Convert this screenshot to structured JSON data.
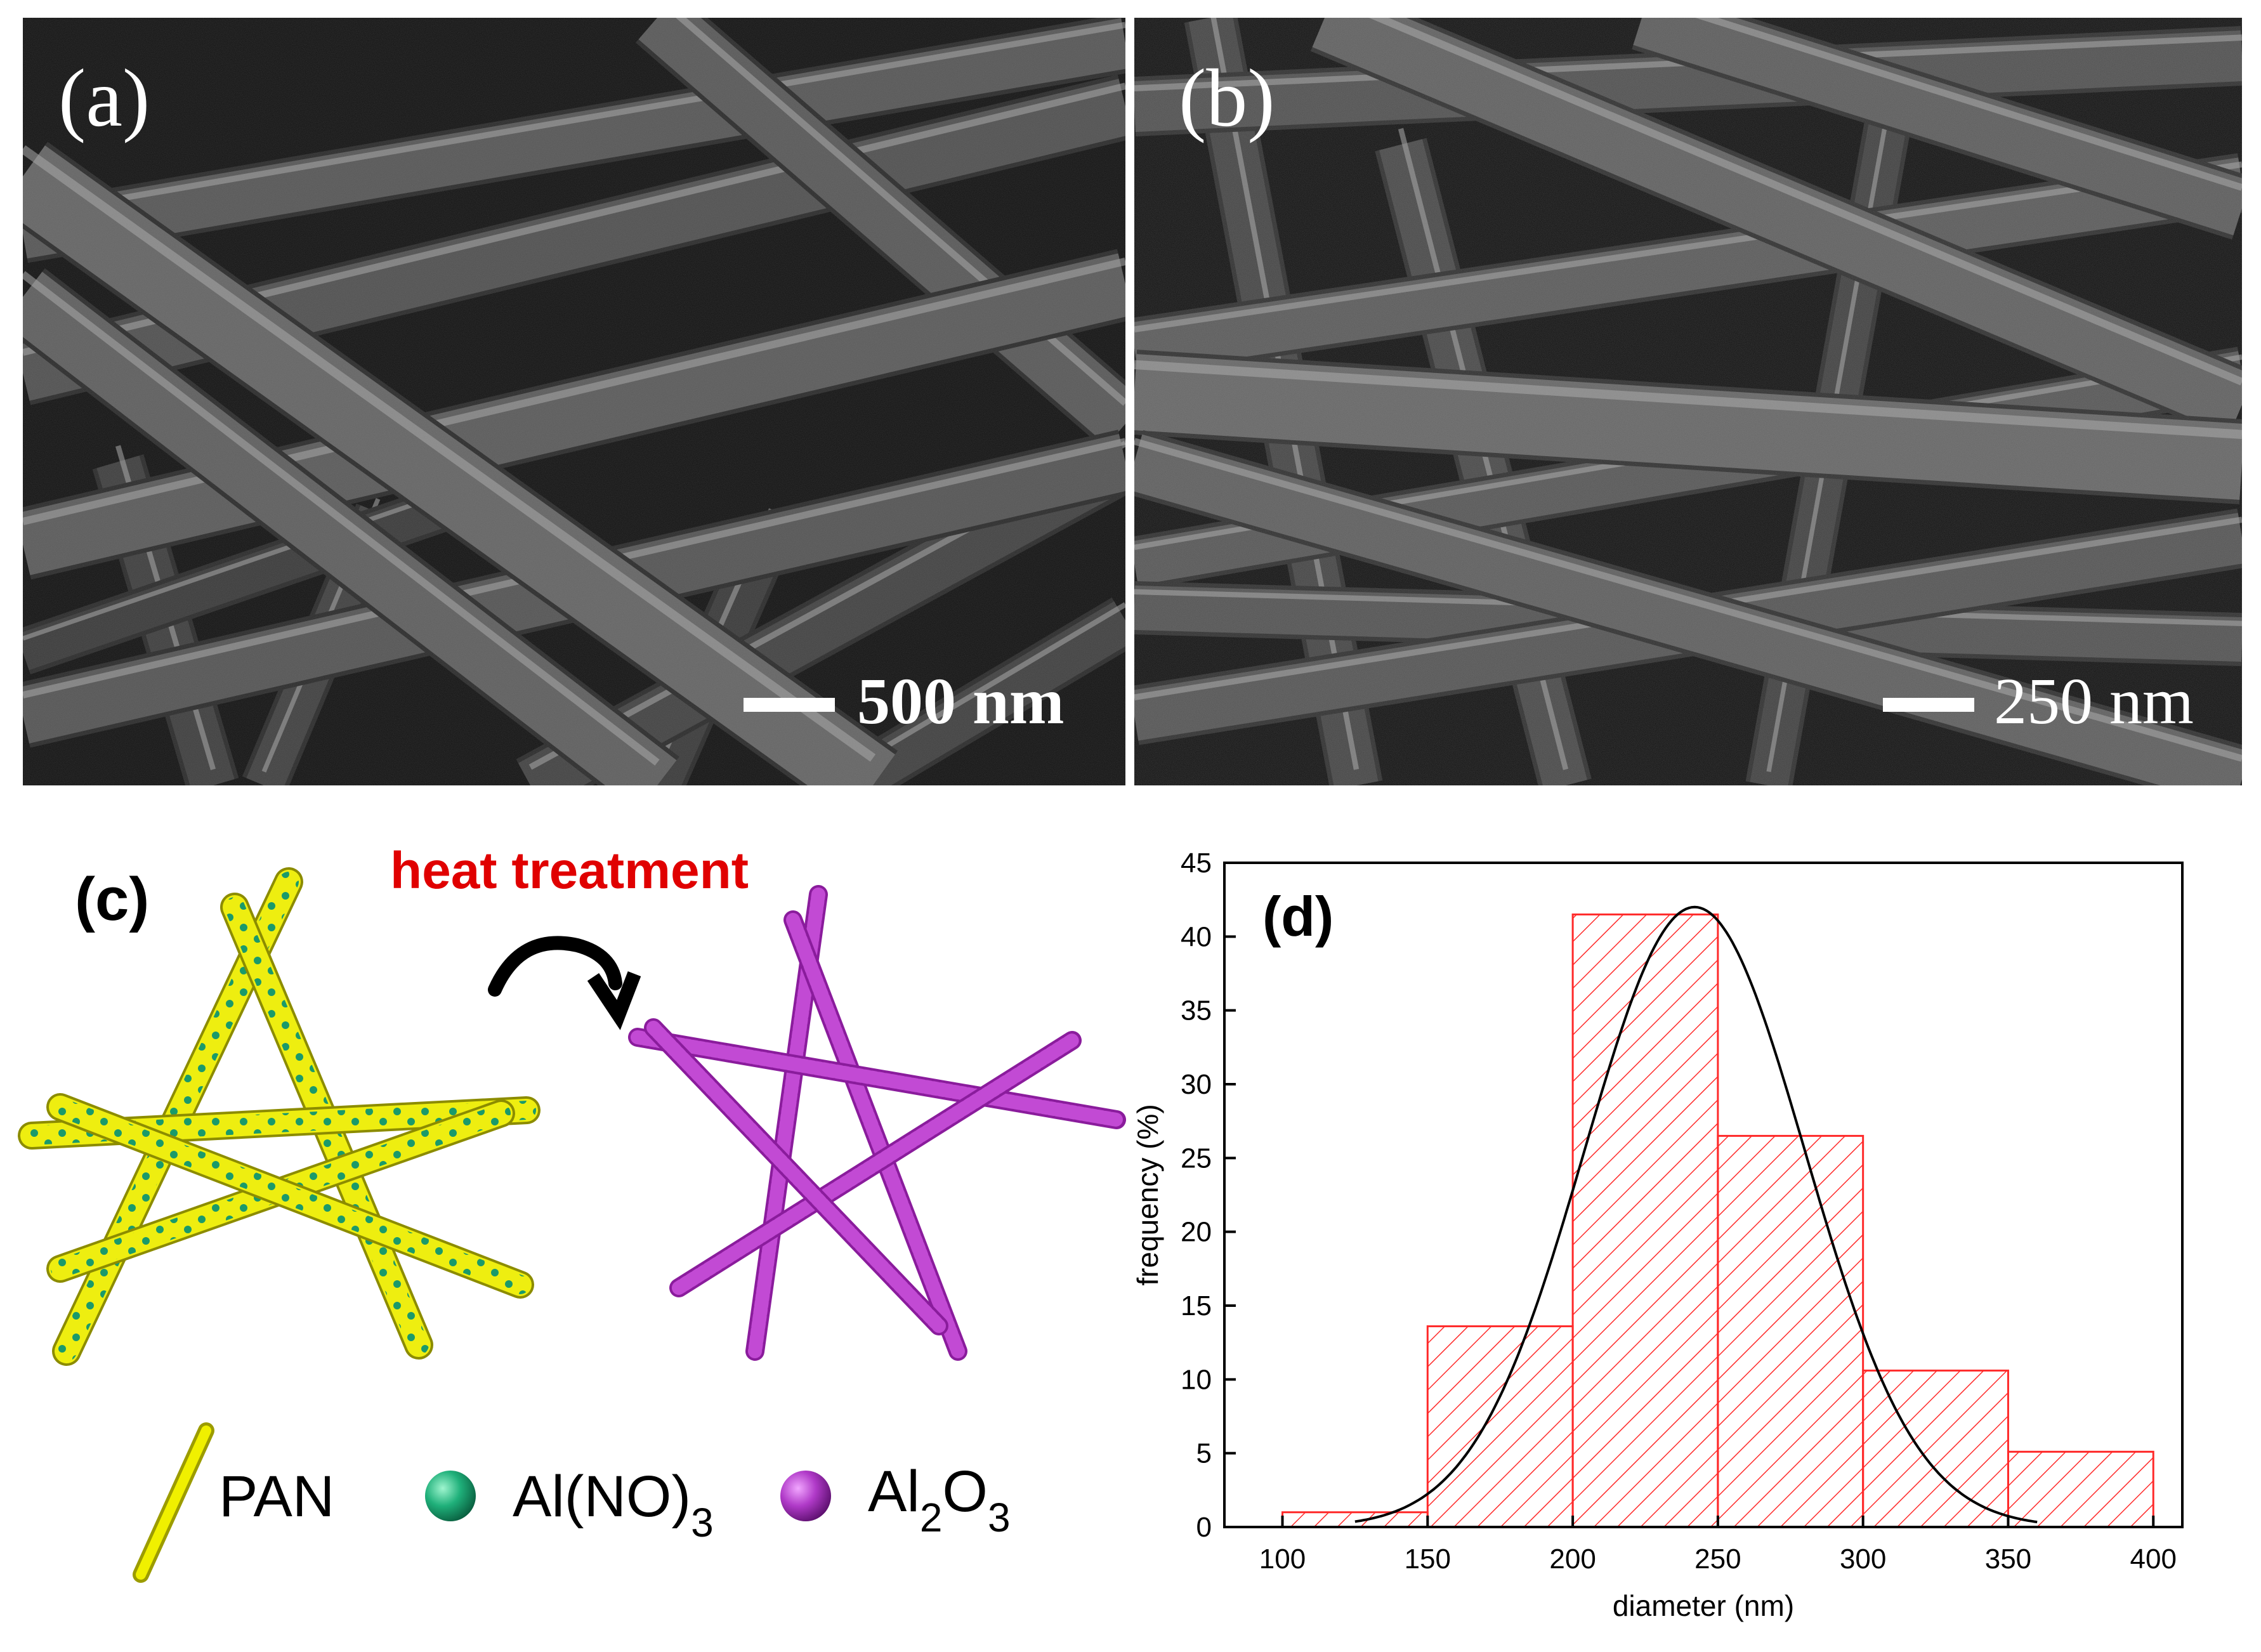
{
  "panels": {
    "a": {
      "label": "(a)",
      "scale_bar": "500 nm"
    },
    "b": {
      "label": "(b)",
      "scale_bar": "250 nm"
    },
    "c": {
      "label": "(c)",
      "arrow_label": "heat treatment",
      "legend": [
        {
          "text": "PAN",
          "color": "#e6e600",
          "shape": "rod"
        },
        {
          "text": "Al(NO)",
          "sub": "3",
          "color": "#1aa86b",
          "shape": "sphere"
        },
        {
          "text": "Al",
          "sub": "2",
          "text2": "O",
          "sub2": "3",
          "color": "#b030c0",
          "shape": "sphere"
        }
      ]
    },
    "d": {
      "label": "(d)"
    }
  },
  "chart_data": {
    "type": "bar",
    "subtype": "histogram",
    "title": "",
    "xlabel": "diameter (nm)",
    "ylabel": "frequency (%)",
    "xlim": [
      80,
      410
    ],
    "ylim": [
      0,
      45
    ],
    "xticks": [
      100,
      150,
      200,
      250,
      300,
      350,
      400
    ],
    "yticks": [
      0,
      5,
      10,
      15,
      20,
      25,
      30,
      35,
      40,
      45
    ],
    "bins": [
      {
        "from": 100,
        "to": 150,
        "value": 1.0
      },
      {
        "from": 150,
        "to": 200,
        "value": 13.6
      },
      {
        "from": 200,
        "to": 250,
        "value": 41.5
      },
      {
        "from": 250,
        "to": 300,
        "value": 26.5
      },
      {
        "from": 300,
        "to": 350,
        "value": 10.6
      },
      {
        "from": 350,
        "to": 400,
        "value": 5.1
      }
    ],
    "bar_color": "#ff2a2a",
    "fill": "hatched",
    "fit_curve": {
      "type": "gaussian",
      "center": 242,
      "sigma": 38,
      "amplitude": 42,
      "color": "#000000"
    },
    "grid": false,
    "legend": "none"
  }
}
